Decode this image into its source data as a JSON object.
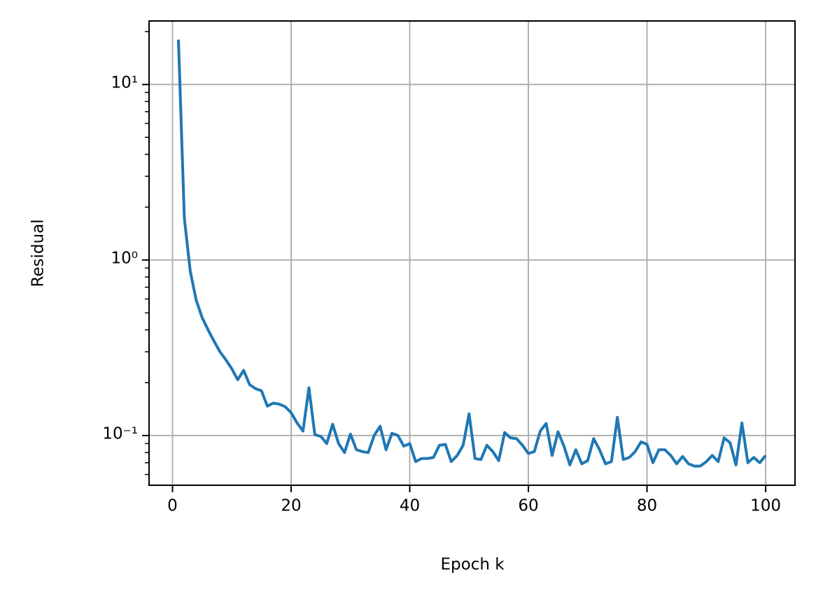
{
  "chart_data": {
    "type": "line",
    "xlabel": "Epoch k",
    "ylabel": "Residual",
    "x": [
      1,
      2,
      3,
      4,
      5,
      6,
      7,
      8,
      9,
      10,
      11,
      12,
      13,
      14,
      15,
      16,
      17,
      18,
      19,
      20,
      21,
      22,
      23,
      24,
      25,
      26,
      27,
      28,
      29,
      30,
      31,
      32,
      33,
      34,
      35,
      36,
      37,
      38,
      39,
      40,
      41,
      42,
      43,
      44,
      45,
      46,
      47,
      48,
      49,
      50,
      51,
      52,
      53,
      54,
      55,
      56,
      57,
      58,
      59,
      60,
      61,
      62,
      63,
      64,
      65,
      66,
      67,
      68,
      69,
      70,
      71,
      72,
      73,
      74,
      75,
      76,
      77,
      78,
      79,
      80,
      81,
      82,
      83,
      84,
      85,
      86,
      87,
      88,
      89,
      90,
      91,
      92,
      93,
      94,
      95,
      96,
      97,
      98,
      99,
      100
    ],
    "series": [
      {
        "color": "#1f77b4",
        "values": [
          18.0,
          1.73,
          0.86,
          0.59,
          0.47,
          0.4,
          0.345,
          0.3,
          0.27,
          0.24,
          0.208,
          0.235,
          0.195,
          0.185,
          0.18,
          0.147,
          0.153,
          0.151,
          0.146,
          0.135,
          0.118,
          0.106,
          0.187,
          0.101,
          0.099,
          0.09,
          0.116,
          0.09,
          0.08,
          0.102,
          0.083,
          0.081,
          0.08,
          0.1,
          0.113,
          0.083,
          0.103,
          0.1,
          0.087,
          0.09,
          0.071,
          0.074,
          0.074,
          0.075,
          0.088,
          0.089,
          0.071,
          0.077,
          0.088,
          0.133,
          0.074,
          0.073,
          0.088,
          0.081,
          0.072,
          0.104,
          0.097,
          0.096,
          0.088,
          0.079,
          0.081,
          0.106,
          0.117,
          0.077,
          0.105,
          0.087,
          0.068,
          0.083,
          0.069,
          0.072,
          0.096,
          0.083,
          0.069,
          0.071,
          0.127,
          0.073,
          0.075,
          0.081,
          0.092,
          0.089,
          0.07,
          0.083,
          0.083,
          0.077,
          0.069,
          0.076,
          0.069,
          0.067,
          0.067,
          0.071,
          0.077,
          0.071,
          0.097,
          0.091,
          0.068,
          0.118,
          0.07,
          0.075,
          0.07,
          0.077
        ]
      }
    ],
    "xlim": [
      -3.95,
      104.95
    ],
    "xticks": [
      0,
      20,
      40,
      60,
      80,
      100
    ],
    "ylim": [
      0.0521,
      23.0
    ],
    "ylog": true,
    "yticks": [
      {
        "value": 0.1,
        "label": "10⁻¹"
      },
      {
        "value": 1,
        "label": "10⁰"
      },
      {
        "value": 10,
        "label": "10¹"
      }
    ],
    "yminorticks": [
      0.06,
      0.07,
      0.08,
      0.09,
      0.2,
      0.3,
      0.4,
      0.5,
      0.6,
      0.7,
      0.8,
      0.9,
      2,
      3,
      4,
      5,
      6,
      7,
      8,
      9,
      20
    ],
    "grid": true
  }
}
